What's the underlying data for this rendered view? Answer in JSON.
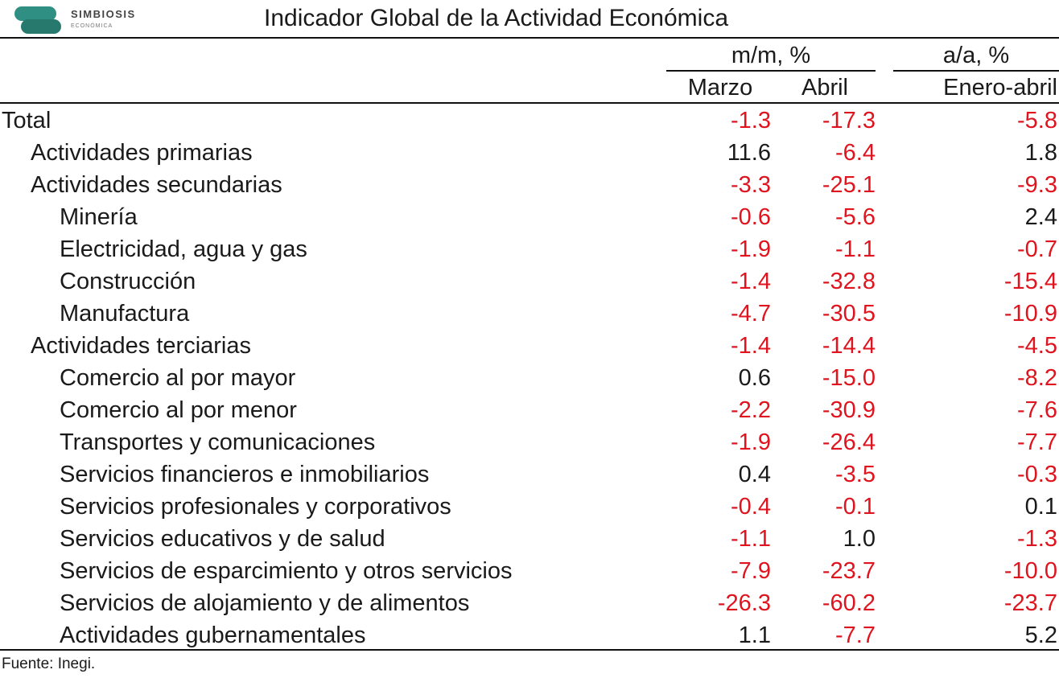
{
  "header": {
    "logo": {
      "name": "SIMBIOSIS",
      "subname": "ECONÓMICA"
    },
    "title": "Indicador Global de la Actividad Económica"
  },
  "table": {
    "column_groups": [
      {
        "label": "m/m, %",
        "columns": [
          "Marzo",
          "Abril"
        ]
      },
      {
        "label": "a/a, %",
        "columns": [
          "Enero-abril"
        ]
      }
    ],
    "rows": [
      {
        "label": "Total",
        "values": [
          "-1.3",
          "-17.3",
          "-5.8"
        ],
        "children": [
          {
            "label": "Actividades primarias",
            "values": [
              "11.6",
              "-6.4",
              "1.8"
            ]
          },
          {
            "label": "Actividades secundarias",
            "values": [
              "-3.3",
              "-25.1",
              "-9.3"
            ],
            "children": [
              {
                "label": "Minería",
                "values": [
                  "-0.6",
                  "-5.6",
                  "2.4"
                ]
              },
              {
                "label": "Electricidad, agua y gas",
                "values": [
                  "-1.9",
                  "-1.1",
                  "-0.7"
                ]
              },
              {
                "label": "Construcción",
                "values": [
                  "-1.4",
                  "-32.8",
                  "-15.4"
                ]
              },
              {
                "label": "Manufactura",
                "values": [
                  "-4.7",
                  "-30.5",
                  "-10.9"
                ]
              }
            ]
          },
          {
            "label": "Actividades terciarias",
            "values": [
              "-1.4",
              "-14.4",
              "-4.5"
            ],
            "children": [
              {
                "label": "Comercio al por mayor",
                "values": [
                  "0.6",
                  "-15.0",
                  "-8.2"
                ]
              },
              {
                "label": "Comercio al por menor",
                "values": [
                  "-2.2",
                  "-30.9",
                  "-7.6"
                ]
              },
              {
                "label": "Transportes y comunicaciones",
                "values": [
                  "-1.9",
                  "-26.4",
                  "-7.7"
                ]
              },
              {
                "label": "Servicios financieros e inmobiliarios",
                "values": [
                  "0.4",
                  "-3.5",
                  "-0.3"
                ]
              },
              {
                "label": "Servicios profesionales y corporativos",
                "values": [
                  "-0.4",
                  "-0.1",
                  "0.1"
                ]
              },
              {
                "label": "Servicios educativos y de salud",
                "values": [
                  "-1.1",
                  "1.0",
                  "-1.3"
                ]
              },
              {
                "label": "Servicios de esparcimiento y otros servicios",
                "values": [
                  "-7.9",
                  "-23.7",
                  "-10.0"
                ]
              },
              {
                "label": "Servicios de alojamiento y de alimentos",
                "values": [
                  "-26.3",
                  "-60.2",
                  "-23.7"
                ]
              },
              {
                "label": "Actividades gubernamentales",
                "values": [
                  "1.1",
                  "-7.7",
                  "5.2"
                ]
              }
            ]
          }
        ]
      }
    ]
  },
  "footer": {
    "source": "Fuente: Inegi."
  }
}
